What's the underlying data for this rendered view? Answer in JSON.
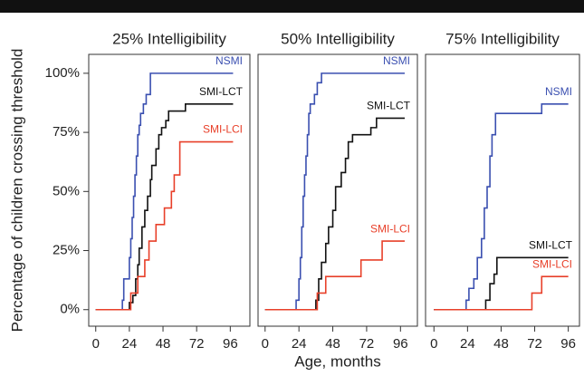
{
  "chart_data": [
    {
      "type": "line",
      "step": "post",
      "title": "25% Intelligibility",
      "ylabel": "Percentage of children crossing threshold",
      "xlim": [
        -5,
        110
      ],
      "xticks": [
        0,
        24,
        48,
        72,
        96
      ],
      "ylim": [
        -7,
        108
      ],
      "yticks": [
        {
          "value": 0,
          "label": "0%"
        },
        {
          "value": 25,
          "label": "25%"
        },
        {
          "value": 50,
          "label": "50%"
        },
        {
          "value": 75,
          "label": "75%"
        },
        {
          "value": 100,
          "label": "100%"
        }
      ],
      "series": [
        {
          "name": "NSMI",
          "color": "#3a4fb0",
          "x": [
            0,
            19,
            20,
            22,
            24,
            25,
            26,
            27,
            28,
            29,
            30,
            31,
            32,
            34,
            36,
            39,
            98
          ],
          "values": [
            0,
            4,
            13,
            13,
            22,
            30,
            39,
            48,
            57,
            65,
            74,
            78,
            83,
            87,
            91,
            100,
            100
          ]
        },
        {
          "name": "SMI-LCT",
          "color": "#111111",
          "x": [
            0,
            24,
            26.5,
            28.5,
            30,
            31,
            33,
            35,
            37,
            39,
            40,
            43,
            45,
            47,
            50,
            52,
            64,
            98
          ],
          "values": [
            0,
            3,
            6,
            13,
            19,
            26,
            35,
            42,
            48,
            55,
            61,
            68,
            74,
            77,
            80,
            84,
            87,
            87
          ]
        },
        {
          "name": "SMI-LCI",
          "color": "#e8402a",
          "x": [
            0,
            25,
            30,
            35,
            38,
            43,
            49,
            54,
            56,
            60,
            98
          ],
          "values": [
            0,
            7,
            14,
            21,
            29,
            36,
            43,
            50,
            57,
            71,
            71
          ]
        }
      ]
    },
    {
      "type": "line",
      "step": "post",
      "title": "50% Intelligibility",
      "xlabel": "Age, months",
      "xlim": [
        -5,
        108
      ],
      "xticks": [
        0,
        24,
        48,
        72,
        96
      ],
      "ylim": [
        -7,
        108
      ],
      "series": [
        {
          "name": "NSMI",
          "color": "#3a4fb0",
          "x": [
            0,
            22,
            24,
            25,
            26,
            27,
            28,
            29,
            30,
            31,
            32,
            35,
            37,
            40,
            99
          ],
          "values": [
            0,
            4,
            13,
            22,
            35,
            48,
            57,
            65,
            74,
            83,
            87,
            91,
            96,
            100,
            100
          ]
        },
        {
          "name": "SMI-LCT",
          "color": "#111111",
          "x": [
            0,
            36,
            38,
            40,
            43,
            45,
            48,
            50,
            54,
            57,
            59,
            62,
            75,
            79,
            99
          ],
          "values": [
            0,
            4,
            13,
            20,
            28,
            35,
            42,
            52,
            58,
            64,
            71,
            74,
            77,
            81,
            81
          ]
        },
        {
          "name": "SMI-LCI",
          "color": "#e8402a",
          "x": [
            0,
            37,
            43,
            68,
            83,
            99
          ],
          "values": [
            0,
            7,
            14,
            21,
            29,
            29
          ]
        }
      ]
    },
    {
      "type": "line",
      "step": "post",
      "title": "75% Intelligibility",
      "xlim": [
        -6,
        104
      ],
      "xticks": [
        0,
        24,
        48,
        72,
        96
      ],
      "ylim": [
        -7,
        108
      ],
      "series": [
        {
          "name": "NSMI",
          "color": "#3a4fb0",
          "x": [
            0,
            23,
            25,
            28.5,
            31,
            34,
            36,
            38,
            40,
            41.5,
            44,
            77,
            96
          ],
          "values": [
            0,
            4,
            9,
            13,
            22,
            30,
            43,
            52,
            65,
            74,
            83,
            87,
            87
          ]
        },
        {
          "name": "SMI-LCT",
          "color": "#111111",
          "x": [
            0,
            37,
            40,
            43,
            45,
            96
          ],
          "values": [
            0,
            4,
            11,
            15,
            22,
            22
          ]
        },
        {
          "name": "SMI-LCI",
          "color": "#e8402a",
          "x": [
            0,
            70,
            77,
            96
          ],
          "values": [
            0,
            7,
            14,
            14
          ]
        }
      ]
    }
  ]
}
